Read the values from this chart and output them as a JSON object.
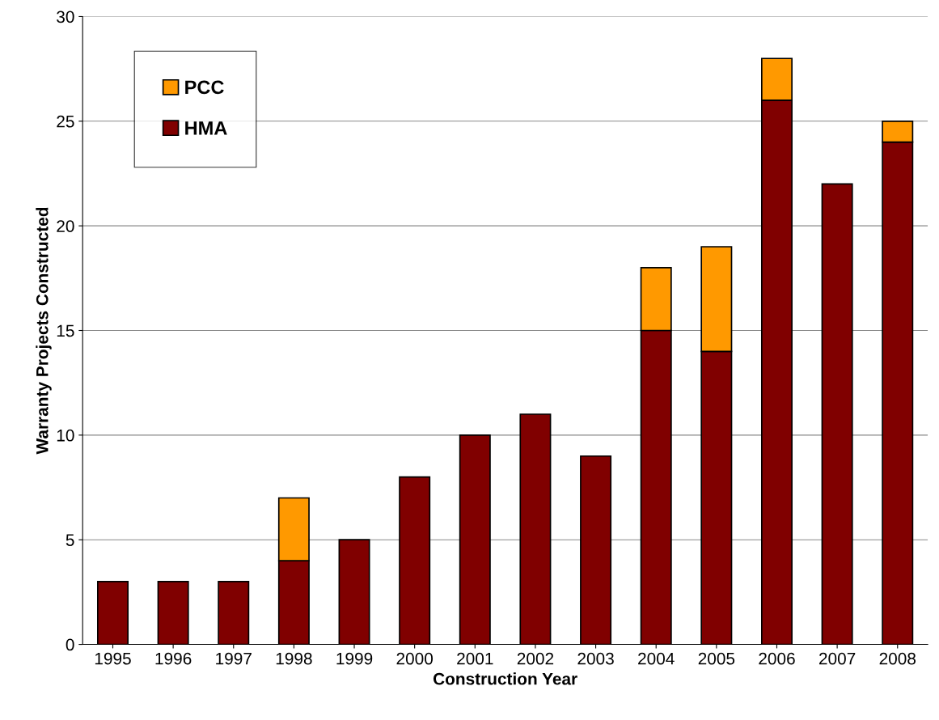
{
  "chart_data": {
    "type": "bar",
    "stacked": true,
    "xlabel": "Construction Year",
    "ylabel": "Warranty Projects Constructed",
    "categories": [
      "1995",
      "1996",
      "1997",
      "1998",
      "1999",
      "2000",
      "2001",
      "2002",
      "2003",
      "2004",
      "2005",
      "2006",
      "2007",
      "2008"
    ],
    "series": [
      {
        "name": "HMA",
        "color": "#800000",
        "values": [
          3,
          3,
          3,
          4,
          5,
          8,
          10,
          11,
          9,
          15,
          14,
          26,
          22,
          24
        ]
      },
      {
        "name": "PCC",
        "color": "#ff9900",
        "values": [
          null,
          null,
          null,
          3,
          null,
          null,
          null,
          null,
          null,
          3,
          5,
          2,
          null,
          1
        ]
      }
    ],
    "ylim": [
      0,
      30
    ],
    "yticks": [
      0,
      5,
      10,
      15,
      20,
      25,
      30
    ],
    "grid": "y",
    "legend": "top left"
  }
}
